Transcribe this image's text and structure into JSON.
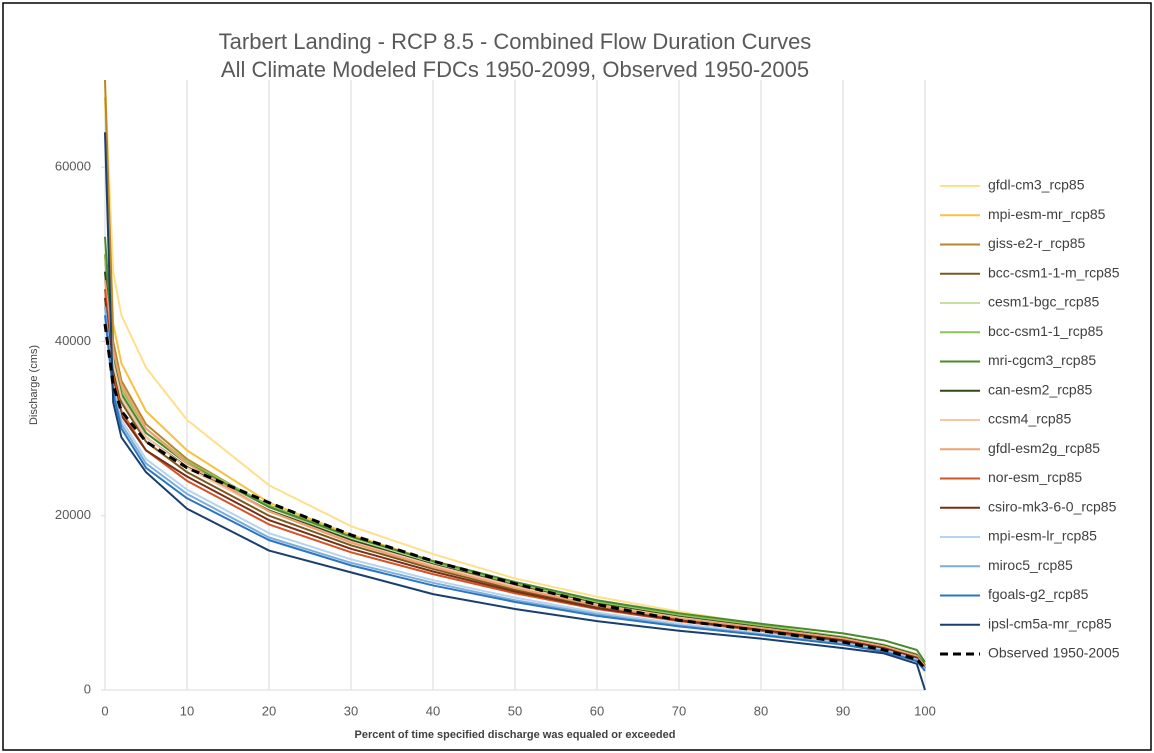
{
  "chart_data": {
    "type": "line",
    "title": "Tarbert Landing - RCP 8.5 - Combined Flow Duration Curves",
    "subtitle": "All Climate Modeled FDCs 1950-2099, Observed 1950-2005",
    "x_label": "Percent of time specified discharge was equaled or exceeded",
    "y_label": "Discharge (cms)",
    "x": [
      0,
      1,
      2,
      5,
      10,
      20,
      30,
      40,
      50,
      60,
      70,
      80,
      90,
      95,
      99,
      100
    ],
    "xlim": [
      0,
      100
    ],
    "xticks": [
      0,
      10,
      20,
      30,
      40,
      50,
      60,
      70,
      80,
      90,
      100
    ],
    "ylim": [
      0,
      70000
    ],
    "yticks": [
      0,
      20000,
      40000,
      60000
    ],
    "grid": "x",
    "legend": "right",
    "series": [
      {
        "name": "gfdl-cm3_rcp85",
        "color": "#fde08a",
        "values": [
          70000,
          48000,
          43000,
          37000,
          31000,
          23500,
          18800,
          15600,
          12800,
          10700,
          9000,
          7500,
          6000,
          5000,
          3800,
          2000
        ]
      },
      {
        "name": "mpi-esm-mr_rcp85",
        "color": "#f5c242",
        "values": [
          68000,
          42000,
          37500,
          32000,
          27500,
          21500,
          17800,
          14800,
          12300,
          10100,
          8500,
          7100,
          5800,
          4900,
          3800,
          2500
        ]
      },
      {
        "name": "giss-e2-r_rcp85",
        "color": "#b8862b",
        "values": [
          70000,
          40000,
          35500,
          30500,
          26500,
          21000,
          17300,
          14500,
          12000,
          9900,
          8300,
          7000,
          5700,
          4800,
          3700,
          2500
        ]
      },
      {
        "name": "bcc-csm1-1-m_rcp85",
        "color": "#7a5a1e",
        "values": [
          50000,
          36500,
          33000,
          28500,
          25000,
          20000,
          16600,
          13900,
          11500,
          9500,
          8000,
          6800,
          5500,
          4700,
          3600,
          2400
        ]
      },
      {
        "name": "cesm1-bgc_rcp85",
        "color": "#c6dfa5",
        "values": [
          48000,
          38000,
          34000,
          29500,
          26000,
          21000,
          17400,
          14500,
          12000,
          9900,
          8400,
          7200,
          5900,
          5000,
          3900,
          2700
        ]
      },
      {
        "name": "bcc-csm1-1_rcp85",
        "color": "#8cc45a",
        "values": [
          50000,
          38500,
          34500,
          30000,
          26200,
          21200,
          17600,
          14700,
          12200,
          10100,
          8600,
          7400,
          6100,
          5200,
          4100,
          2900
        ]
      },
      {
        "name": "mri-cgcm3_rcp85",
        "color": "#4a8a2e",
        "values": [
          52000,
          38000,
          34000,
          29500,
          26000,
          21000,
          17600,
          14800,
          12400,
          10300,
          8800,
          7600,
          6500,
          5700,
          4600,
          3200
        ]
      },
      {
        "name": "can-esm2_rcp85",
        "color": "#2e4a1a",
        "values": [
          48000,
          37000,
          33500,
          29000,
          25600,
          20600,
          17200,
          14400,
          12000,
          9900,
          8400,
          7200,
          6000,
          5100,
          4000,
          2800
        ]
      },
      {
        "name": "ccsm4_rcp85",
        "color": "#f5c6a8",
        "values": [
          46000,
          37500,
          33500,
          29000,
          25500,
          20500,
          17000,
          14300,
          11900,
          9800,
          8300,
          7100,
          5900,
          5000,
          3900,
          2700
        ]
      },
      {
        "name": "gfdl-esm2g_rcp85",
        "color": "#f0a070",
        "values": [
          47000,
          39000,
          35000,
          30000,
          26000,
          20500,
          16900,
          14100,
          11700,
          9700,
          8200,
          7100,
          5900,
          5000,
          3900,
          2700
        ]
      },
      {
        "name": "nor-esm_rcp85",
        "color": "#d0542a",
        "values": [
          46000,
          36000,
          32000,
          27500,
          24000,
          19000,
          15800,
          13300,
          11100,
          9300,
          7900,
          6800,
          5700,
          4800,
          3700,
          2500
        ]
      },
      {
        "name": "csiro-mk3-6-0_rcp85",
        "color": "#7a2e14",
        "values": [
          45000,
          35500,
          31500,
          27500,
          24500,
          19500,
          16200,
          13600,
          11300,
          9400,
          8000,
          6900,
          5700,
          4800,
          3700,
          2500
        ]
      },
      {
        "name": "mpi-esm-lr_rcp85",
        "color": "#b7d3ee",
        "values": [
          44000,
          35000,
          31000,
          26500,
          23000,
          18000,
          15000,
          12600,
          10600,
          8900,
          7600,
          6500,
          5400,
          4600,
          3500,
          2400
        ]
      },
      {
        "name": "miroc5_rcp85",
        "color": "#7aaedc",
        "values": [
          44000,
          34500,
          30500,
          26000,
          22500,
          17500,
          14600,
          12300,
          10300,
          8700,
          7400,
          6400,
          5300,
          4500,
          3400,
          2300
        ]
      },
      {
        "name": "fgoals-g2_rcp85",
        "color": "#2e75c0",
        "values": [
          43000,
          34000,
          30000,
          25500,
          22000,
          17200,
          14300,
          12000,
          10100,
          8500,
          7300,
          6300,
          5200,
          4400,
          3300,
          2200
        ]
      },
      {
        "name": "ipsl-cm5a-mr_rcp85",
        "color": "#1a3f6e",
        "values": [
          64000,
          33000,
          29000,
          25000,
          20800,
          16000,
          13500,
          11000,
          9300,
          7900,
          6800,
          5900,
          4800,
          4200,
          3000,
          0
        ]
      },
      {
        "name": "Observed 1950-2005",
        "color": "#000000",
        "dashed": true,
        "values": [
          42000,
          35000,
          32000,
          28500,
          25500,
          21500,
          17800,
          14800,
          12200,
          9800,
          8000,
          6800,
          5500,
          4600,
          3500,
          2500
        ]
      }
    ]
  }
}
